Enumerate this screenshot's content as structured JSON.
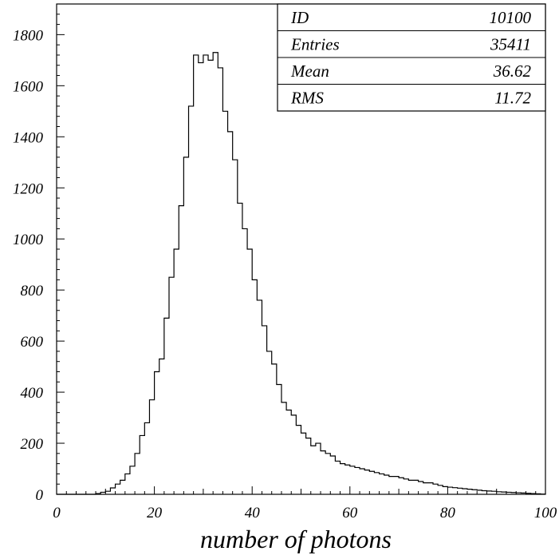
{
  "chart_data": {
    "type": "histogram",
    "xlabel": "number of photons",
    "ylabel": "",
    "xlim": [
      0,
      100
    ],
    "ylim": [
      0,
      1920
    ],
    "x_ticks": [
      "0",
      "20",
      "40",
      "60",
      "80",
      "100"
    ],
    "y_ticks": [
      "0",
      "200",
      "400",
      "600",
      "800",
      "1000",
      "1200",
      "1400",
      "1600",
      "1800"
    ],
    "x_tick_values": [
      0,
      20,
      40,
      60,
      80,
      100
    ],
    "y_tick_values": [
      0,
      200,
      400,
      600,
      800,
      1000,
      1200,
      1400,
      1600,
      1800
    ],
    "bin_edges_start": 0,
    "bin_width": 1,
    "values": [
      0,
      0,
      0,
      0,
      0,
      0,
      0,
      0,
      3,
      8,
      12,
      25,
      40,
      55,
      80,
      110,
      160,
      230,
      280,
      370,
      480,
      530,
      690,
      850,
      960,
      1130,
      1320,
      1520,
      1720,
      1690,
      1720,
      1700,
      1730,
      1670,
      1500,
      1420,
      1310,
      1140,
      1040,
      960,
      840,
      760,
      660,
      560,
      510,
      430,
      360,
      330,
      310,
      270,
      240,
      220,
      190,
      200,
      170,
      160,
      150,
      130,
      120,
      115,
      110,
      105,
      100,
      95,
      90,
      85,
      80,
      75,
      70,
      70,
      65,
      60,
      55,
      55,
      50,
      45,
      45,
      40,
      35,
      30,
      28,
      26,
      24,
      22,
      20,
      18,
      16,
      14,
      13,
      12,
      10,
      9,
      8,
      7,
      6,
      5,
      4,
      3,
      2,
      1
    ],
    "grid": false,
    "legend": "none",
    "line_color": "#000000",
    "stats_box": {
      "placement": "top-right",
      "rows": [
        {
          "label": "ID",
          "value": "10100"
        },
        {
          "label": "Entries",
          "value": "35411"
        },
        {
          "label": "Mean",
          "value": "36.62"
        },
        {
          "label": "RMS",
          "value": "11.72"
        }
      ]
    }
  }
}
